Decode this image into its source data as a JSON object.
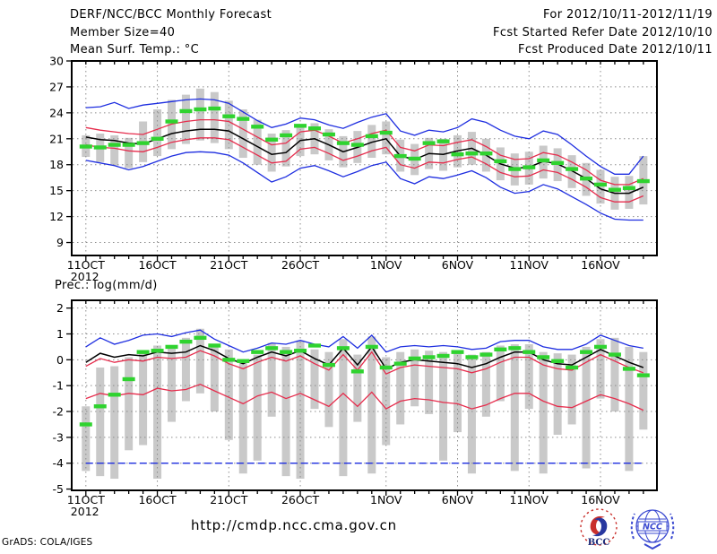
{
  "header": {
    "title": "DERF/NCC/BCC Monthly Forecast",
    "member_size": "Member Size=40",
    "temp_label": "Mean Surf. Temp.: °C",
    "for_range": "For 2012/10/11-2012/11/19",
    "fcst_started": "Fcst Started Refer Date 2012/10/10",
    "fcst_produced": "Fcst Produced Date 2012/10/11"
  },
  "prec_label": "Prec.: log(mm/d)",
  "footer": {
    "url": "http://cmdp.ncc.cma.gov.cn",
    "grads_credit": "GrADS: COLA/IGES",
    "logos": {
      "bcc_label": "BCC",
      "ncc_label": "NCC"
    }
  },
  "colors": {
    "blue": "#1e2ee0",
    "red": "#e62c4c",
    "black": "#000000",
    "green": "#2fd32f",
    "gray": "#c9c9c9",
    "grid": "#8d8d8d",
    "frame": "#000000",
    "logo_blue": "#3a49d0",
    "logo_red": "#c9302c",
    "logo_navy": "#1c2a78"
  },
  "chart_data": [
    {
      "id": "temp",
      "type": "line",
      "title": "Mean Surf. Temp.: °C",
      "ylabel": "degC",
      "ylim": [
        7.5,
        30
      ],
      "yticks": [
        30,
        27,
        24,
        21,
        18,
        15,
        12,
        9
      ],
      "grid": true,
      "x": {
        "n_days": 40,
        "start_date_label": "11OCT 2012",
        "year_label": "2012",
        "tick_days": [
          0,
          5,
          10,
          15,
          21,
          26,
          31,
          36
        ],
        "tick_labels": [
          "11OCT",
          "16OCT",
          "21OCT",
          "26OCT",
          "1NOV",
          "6NOV",
          "11NOV",
          "16NOV"
        ]
      },
      "series": [
        {
          "name": "ensemble-max",
          "color": "blue",
          "values": [
            24.6,
            24.7,
            25.2,
            24.5,
            24.9,
            25.1,
            25.3,
            25.5,
            25.6,
            25.5,
            25.1,
            24.1,
            23.1,
            22.3,
            22.7,
            23.4,
            23.2,
            22.6,
            22.2,
            22.9,
            23.5,
            23.9,
            21.9,
            21.4,
            22.0,
            21.8,
            22.3,
            23.3,
            22.9,
            22.0,
            21.3,
            21.0,
            21.9,
            21.5,
            20.3,
            19.0,
            17.8,
            16.9,
            16.9,
            19.0
          ]
        },
        {
          "name": "upper-quartile",
          "color": "red",
          "values": [
            22.3,
            22.0,
            21.8,
            21.6,
            21.5,
            22.1,
            22.7,
            23.0,
            23.2,
            23.2,
            23.0,
            22.1,
            21.2,
            20.3,
            20.5,
            21.8,
            22.0,
            21.3,
            20.5,
            21.0,
            21.6,
            22.0,
            20.0,
            19.6,
            20.3,
            20.2,
            20.6,
            20.9,
            20.1,
            19.1,
            18.6,
            18.7,
            19.4,
            19.1,
            18.3,
            17.4,
            16.2,
            15.7,
            15.7,
            16.4
          ]
        },
        {
          "name": "ensemble-mean",
          "color": "black",
          "values": [
            21.2,
            20.9,
            20.8,
            20.5,
            20.4,
            21.0,
            21.6,
            21.9,
            22.1,
            22.1,
            21.9,
            21.0,
            20.1,
            19.2,
            19.4,
            20.8,
            21.0,
            20.3,
            19.5,
            20.0,
            20.6,
            21.0,
            19.0,
            18.6,
            19.3,
            19.2,
            19.6,
            19.9,
            19.1,
            18.1,
            17.6,
            17.7,
            18.4,
            18.1,
            17.3,
            16.4,
            15.2,
            14.7,
            14.7,
            15.4
          ]
        },
        {
          "name": "lower-quartile",
          "color": "red",
          "values": [
            20.3,
            20.0,
            19.9,
            19.6,
            19.5,
            20.0,
            20.6,
            20.9,
            21.1,
            21.1,
            20.9,
            20.0,
            19.1,
            18.2,
            18.4,
            19.8,
            20.0,
            19.3,
            18.5,
            19.0,
            19.6,
            20.0,
            18.0,
            17.6,
            18.3,
            18.2,
            18.6,
            18.9,
            18.1,
            17.1,
            16.6,
            16.7,
            17.4,
            17.1,
            16.3,
            15.4,
            14.2,
            13.7,
            13.7,
            14.4
          ]
        },
        {
          "name": "ensemble-min",
          "color": "blue",
          "values": [
            18.5,
            18.2,
            17.9,
            17.4,
            17.8,
            18.4,
            19.0,
            19.4,
            19.5,
            19.4,
            19.1,
            18.2,
            17.1,
            16.0,
            16.6,
            17.6,
            17.9,
            17.3,
            16.6,
            17.2,
            17.9,
            18.3,
            16.4,
            15.8,
            16.6,
            16.4,
            16.8,
            17.3,
            16.5,
            15.4,
            14.7,
            14.9,
            15.7,
            15.2,
            14.3,
            13.4,
            12.4,
            11.7,
            11.6,
            11.6
          ]
        }
      ],
      "spread_bars": {
        "name": "ensemble-spread",
        "color": "gray",
        "low": [
          18.9,
          18.3,
          17.9,
          17.6,
          18.3,
          19.0,
          19.8,
          20.4,
          20.8,
          20.5,
          19.8,
          18.8,
          18.0,
          17.2,
          17.8,
          19.0,
          19.2,
          18.5,
          17.7,
          18.2,
          18.8,
          19.2,
          17.2,
          16.8,
          17.5,
          17.3,
          17.7,
          18.0,
          17.2,
          16.2,
          15.6,
          15.7,
          16.4,
          16.1,
          15.3,
          14.4,
          13.5,
          12.8,
          12.9,
          13.4
        ],
        "high": [
          21.4,
          21.6,
          21.4,
          21.1,
          23.0,
          24.4,
          25.5,
          26.1,
          26.8,
          26.4,
          25.4,
          24.4,
          23.2,
          21.6,
          22.0,
          22.6,
          22.8,
          22.1,
          21.3,
          21.9,
          22.6,
          23.0,
          20.9,
          20.4,
          21.1,
          21.0,
          21.4,
          21.8,
          21.0,
          20.0,
          19.3,
          19.5,
          20.2,
          19.9,
          19.1,
          18.2,
          17.4,
          16.6,
          16.7,
          19.0
        ]
      },
      "green_dashes": {
        "name": "observation-dashes",
        "color": "green",
        "values": [
          20.1,
          20.0,
          20.3,
          20.3,
          20.5,
          21.0,
          23.0,
          24.2,
          24.4,
          24.5,
          23.6,
          23.3,
          22.4,
          20.9,
          21.4,
          22.5,
          22.2,
          21.5,
          20.5,
          20.3,
          21.3,
          21.7,
          19.0,
          18.7,
          20.5,
          20.7,
          19.2,
          19.3,
          19.3,
          18.4,
          17.5,
          17.7,
          18.5,
          18.2,
          17.5,
          16.4,
          15.7,
          15.1,
          15.3,
          16.1
        ]
      }
    },
    {
      "id": "prec",
      "type": "line",
      "title": "Prec.: log(mm/d)",
      "ylabel": "log(mm/d)",
      "ylim": [
        -5.05,
        2.3
      ],
      "yticks": [
        2,
        1,
        0,
        -1,
        -2,
        -3,
        -4,
        -5
      ],
      "grid": true,
      "x": {
        "n_days": 40,
        "start_date_label": "11OCT 2012",
        "year_label": "2012",
        "tick_days": [
          0,
          5,
          10,
          15,
          21,
          26,
          31,
          36
        ],
        "tick_labels": [
          "11OCT",
          "16OCT",
          "21OCT",
          "26OCT",
          "1NOV",
          "6NOV",
          "11NOV",
          "16NOV"
        ]
      },
      "series": [
        {
          "name": "ensemble-max",
          "color": "blue",
          "values": [
            0.5,
            0.85,
            0.6,
            0.75,
            0.95,
            1.0,
            0.9,
            1.05,
            1.15,
            0.8,
            0.55,
            0.3,
            0.45,
            0.65,
            0.6,
            0.75,
            0.6,
            0.5,
            0.9,
            0.45,
            0.95,
            0.3,
            0.5,
            0.55,
            0.5,
            0.55,
            0.5,
            0.4,
            0.45,
            0.7,
            0.75,
            0.75,
            0.5,
            0.4,
            0.4,
            0.6,
            0.95,
            0.75,
            0.55,
            0.45
          ]
        },
        {
          "name": "upper-quartile",
          "color": "red",
          "values": [
            -0.25,
            0.05,
            -0.1,
            0.0,
            -0.05,
            0.1,
            0.05,
            0.1,
            0.35,
            0.15,
            -0.15,
            -0.35,
            -0.1,
            0.1,
            -0.05,
            0.15,
            -0.15,
            -0.4,
            0.2,
            -0.4,
            0.3,
            -0.55,
            -0.3,
            -0.2,
            -0.25,
            -0.3,
            -0.35,
            -0.5,
            -0.35,
            -0.1,
            0.1,
            0.1,
            -0.2,
            -0.35,
            -0.4,
            -0.1,
            0.2,
            -0.05,
            -0.3,
            -0.5
          ]
        },
        {
          "name": "ensemble-mean",
          "color": "black",
          "values": [
            -0.1,
            0.25,
            0.1,
            0.2,
            0.15,
            0.3,
            0.25,
            0.3,
            0.55,
            0.35,
            0.05,
            -0.15,
            0.1,
            0.3,
            0.15,
            0.35,
            0.05,
            -0.2,
            0.45,
            -0.2,
            0.5,
            -0.35,
            -0.1,
            0.0,
            -0.05,
            -0.1,
            -0.15,
            -0.3,
            -0.15,
            0.1,
            0.3,
            0.3,
            0.0,
            -0.15,
            -0.2,
            0.1,
            0.4,
            0.15,
            -0.1,
            -0.3
          ]
        },
        {
          "name": "lower-quartile",
          "color": "red",
          "values": [
            -1.5,
            -1.3,
            -1.4,
            -1.3,
            -1.35,
            -1.1,
            -1.2,
            -1.15,
            -0.95,
            -1.2,
            -1.45,
            -1.7,
            -1.4,
            -1.25,
            -1.5,
            -1.3,
            -1.55,
            -1.8,
            -1.3,
            -1.8,
            -1.25,
            -1.9,
            -1.6,
            -1.5,
            -1.55,
            -1.65,
            -1.7,
            -1.9,
            -1.75,
            -1.5,
            -1.3,
            -1.3,
            -1.6,
            -1.8,
            -1.85,
            -1.6,
            -1.35,
            -1.5,
            -1.7,
            -1.95
          ]
        },
        {
          "name": "ensemble-min",
          "color": "blue",
          "dashed": true,
          "clipped_at": -4,
          "values": [
            -4,
            -4,
            -4,
            -4,
            -4,
            -4,
            -4,
            -4,
            -4,
            -4,
            -4,
            -4,
            -4,
            -4,
            -4,
            -4,
            -4,
            -4,
            -4,
            -4,
            -4,
            -4,
            -4,
            -4,
            -4,
            -4,
            -4,
            -4,
            -4,
            -4,
            -4,
            -4,
            -4,
            -4,
            -4,
            -4,
            -4,
            -4,
            -4,
            -4
          ]
        }
      ],
      "spread_bars": {
        "name": "ensemble-spread",
        "color": "gray",
        "low": [
          -4.3,
          -4.5,
          -4.6,
          -3.5,
          -3.3,
          -4.6,
          -2.4,
          -1.6,
          -1.3,
          -2.0,
          -3.1,
          -4.4,
          -3.9,
          -2.2,
          -4.5,
          -4.6,
          -1.9,
          -2.6,
          -4.5,
          -2.4,
          -4.4,
          -3.3,
          -2.5,
          -1.8,
          -2.1,
          -3.9,
          -2.8,
          -4.4,
          -2.2,
          -1.6,
          -4.3,
          -1.9,
          -4.4,
          -2.9,
          -2.5,
          -4.2,
          -1.5,
          -2.0,
          -4.3,
          -2.7
        ],
        "high": [
          -1.8,
          -0.3,
          -0.25,
          0.1,
          0.3,
          0.55,
          0.5,
          0.85,
          1.2,
          0.6,
          0.4,
          -0.1,
          0.2,
          0.65,
          0.5,
          0.75,
          0.4,
          0.3,
          0.8,
          0.2,
          0.9,
          0.1,
          0.3,
          0.4,
          0.35,
          0.3,
          0.3,
          0.2,
          0.3,
          0.55,
          0.6,
          0.6,
          0.3,
          0.25,
          0.2,
          0.5,
          0.8,
          0.85,
          0.5,
          0.3
        ]
      },
      "green_dashes": {
        "name": "observation-dashes",
        "color": "green",
        "values": [
          -2.5,
          -1.8,
          -1.35,
          -0.75,
          0.3,
          0.35,
          0.5,
          0.7,
          0.85,
          0.55,
          0.0,
          -0.05,
          0.3,
          0.45,
          0.3,
          0.35,
          0.55,
          -0.2,
          0.45,
          -0.45,
          0.5,
          -0.3,
          -0.15,
          0.05,
          0.1,
          0.15,
          0.3,
          0.1,
          0.2,
          0.4,
          0.45,
          0.3,
          0.1,
          -0.05,
          -0.3,
          0.3,
          0.5,
          0.2,
          -0.35,
          -0.6
        ]
      }
    }
  ]
}
